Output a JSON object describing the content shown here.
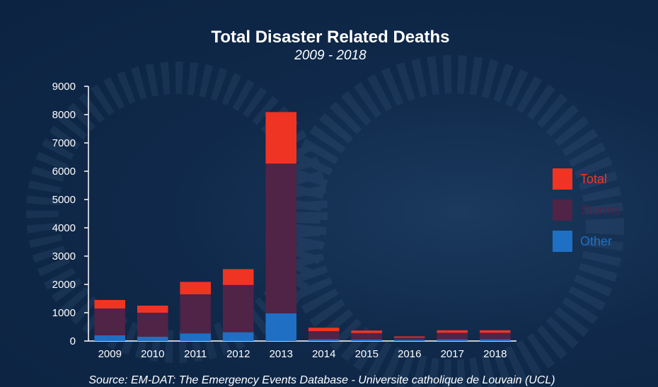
{
  "chart_data": {
    "type": "bar",
    "stacked": true,
    "title": "Total Disaster Related Deaths",
    "subtitle": "2009 - 2018",
    "categories": [
      "2009",
      "2010",
      "2011",
      "2012",
      "2013",
      "2014",
      "2015",
      "2016",
      "2017",
      "2018"
    ],
    "series": [
      {
        "name": "Other",
        "color": "#1f6fc4",
        "values": [
          200,
          150,
          270,
          310,
          980,
          60,
          50,
          40,
          60,
          60
        ]
      },
      {
        "name": "Storms",
        "color": "#4f2447",
        "values": [
          950,
          850,
          1380,
          1670,
          5290,
          290,
          230,
          80,
          230,
          230
        ]
      },
      {
        "name": "Total",
        "color": "#f03423",
        "values": [
          300,
          250,
          440,
          560,
          1820,
          120,
          90,
          40,
          90,
          90
        ]
      }
    ],
    "ylim": [
      0,
      9000
    ],
    "yticks": [
      0,
      1000,
      2000,
      3000,
      4000,
      5000,
      6000,
      7000,
      8000,
      9000
    ],
    "legend_position": "right",
    "legend_order": [
      "Total",
      "Storms",
      "Other"
    ],
    "source": "Source: EM-DAT: The Emergency Events Database - Universite catholique de Louvain (UCL)"
  }
}
